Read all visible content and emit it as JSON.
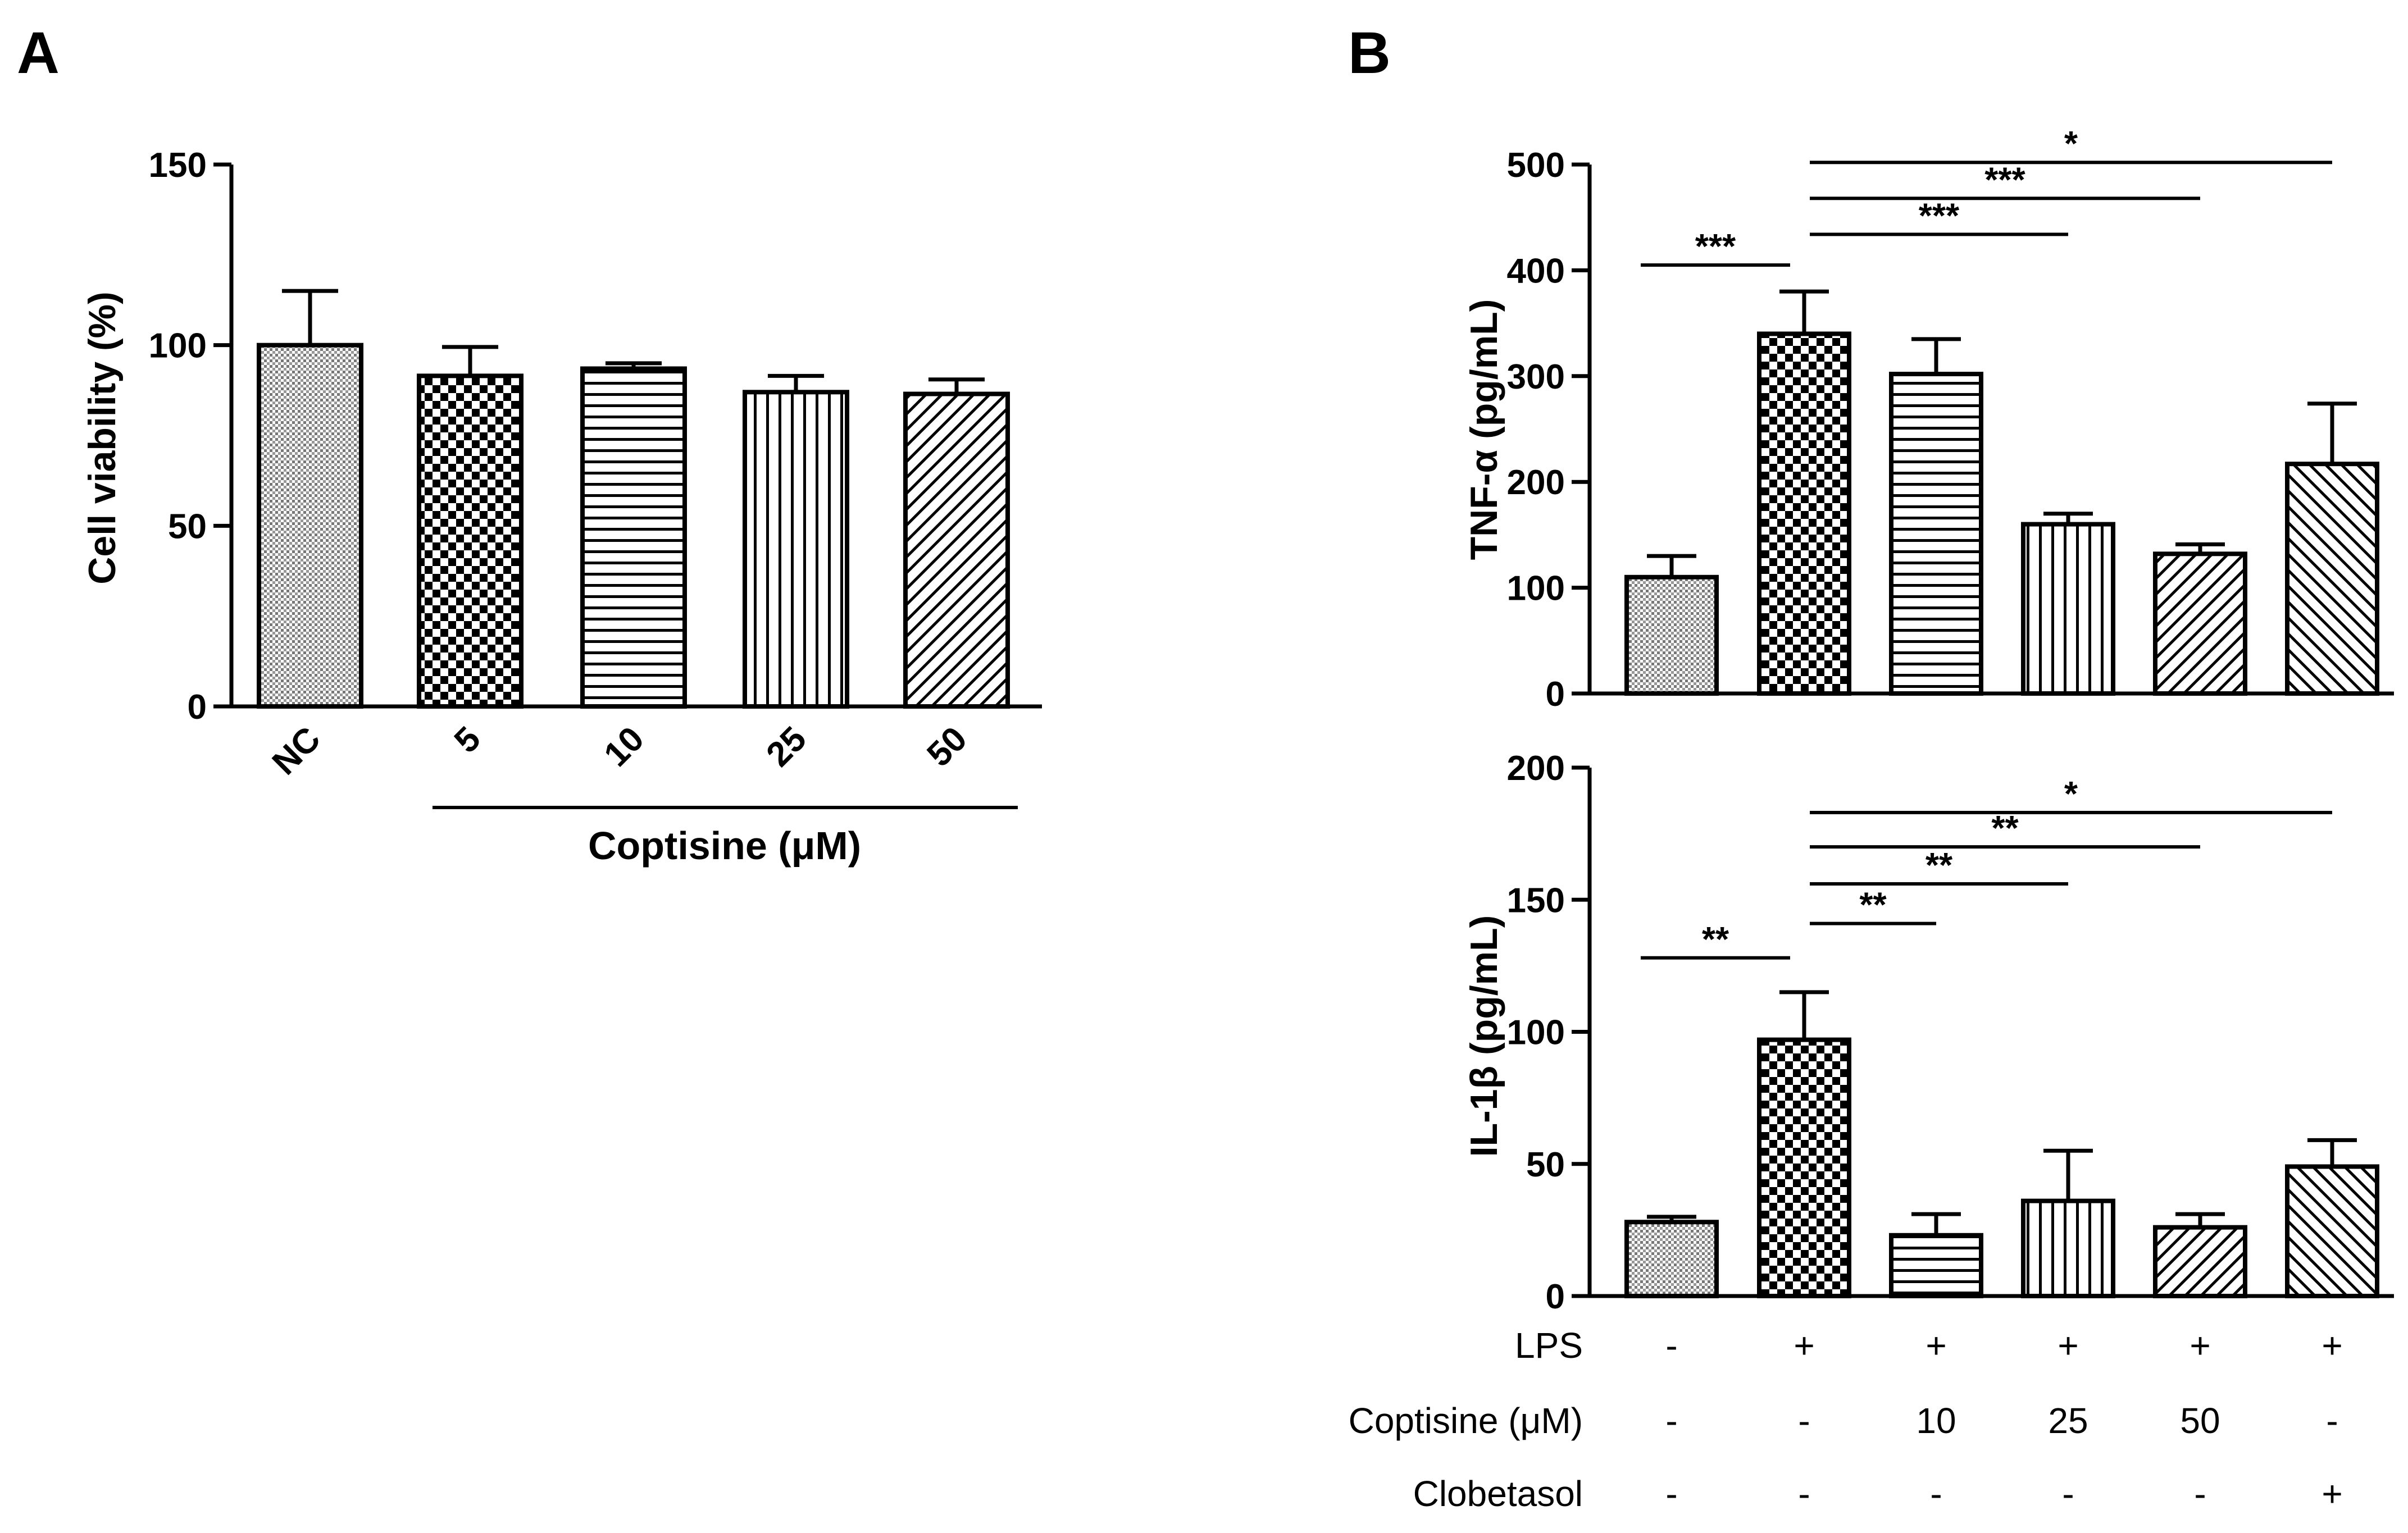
{
  "chart_data": [
    {
      "panel": "A",
      "type": "bar",
      "ylabel": "Cell viability (%)",
      "xlabel": "Coptisine (μM)",
      "ylim": [
        0,
        150
      ],
      "yticks": [
        0,
        50,
        100,
        150
      ],
      "categories": [
        "NC",
        "5",
        "10",
        "25",
        "50"
      ],
      "values": [
        100,
        91.5,
        93.5,
        87,
        86.5
      ],
      "errors": [
        15,
        8,
        1.5,
        4.5,
        4
      ],
      "patterns": [
        "dots",
        "checker",
        "hlines",
        "vlines",
        "diag"
      ]
    },
    {
      "panel": "B",
      "type": "bar",
      "ylabel": "TNF-α (pg/mL)",
      "ylim": [
        0,
        500
      ],
      "yticks": [
        0,
        100,
        200,
        300,
        400,
        500
      ],
      "values": [
        110,
        340,
        302,
        160,
        132,
        217
      ],
      "errors": [
        20,
        40,
        33,
        10,
        9,
        57
      ],
      "patterns": [
        "dots",
        "checker",
        "hlines",
        "vlines",
        "diag",
        "diag2"
      ],
      "significance": [
        {
          "from": 0,
          "to": 1,
          "label": "***",
          "y": 405
        },
        {
          "from": 1,
          "to": 3,
          "label": "***",
          "y": 434
        },
        {
          "from": 1,
          "to": 4,
          "label": "***",
          "y": 468
        },
        {
          "from": 1,
          "to": 5,
          "label": "*",
          "y": 502
        }
      ]
    },
    {
      "panel": "B",
      "type": "bar",
      "ylabel": "IL-1β (pg/mL)",
      "ylim": [
        0,
        200
      ],
      "yticks": [
        0,
        50,
        100,
        150,
        200
      ],
      "values": [
        28,
        97,
        23,
        36,
        26,
        49
      ],
      "errors": [
        2,
        18,
        8,
        19,
        5,
        10
      ],
      "patterns": [
        "dots",
        "checker",
        "hlines",
        "vlines",
        "diag",
        "diag2"
      ],
      "significance": [
        {
          "from": 0,
          "to": 1,
          "label": "**",
          "y": 128
        },
        {
          "from": 1,
          "to": 2,
          "label": "**",
          "y": 141
        },
        {
          "from": 1,
          "to": 3,
          "label": "**",
          "y": 156
        },
        {
          "from": 1,
          "to": 4,
          "label": "**",
          "y": 170
        },
        {
          "from": 1,
          "to": 5,
          "label": "*",
          "y": 183
        }
      ]
    }
  ],
  "panel_labels": {
    "a": "A",
    "b": "B"
  },
  "conditions": {
    "rows": [
      {
        "label": "LPS",
        "values": [
          "-",
          "+",
          "+",
          "+",
          "+",
          "+"
        ]
      },
      {
        "label": "Coptisine (μM)",
        "values": [
          "-",
          "-",
          "10",
          "25",
          "50",
          "-"
        ]
      },
      {
        "label": "Clobetasol",
        "values": [
          "-",
          "-",
          "-",
          "-",
          "-",
          "+"
        ]
      }
    ]
  }
}
